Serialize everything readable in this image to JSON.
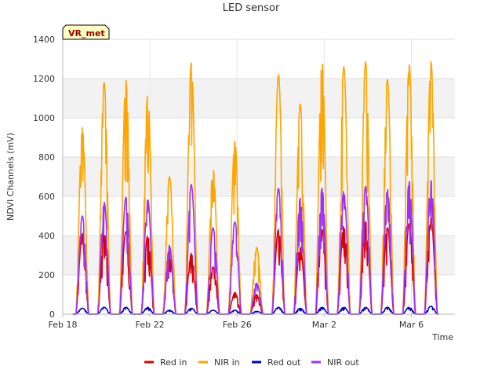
{
  "chart_data": {
    "type": "line",
    "title": "LED sensor",
    "xlabel": "Time",
    "ylabel": "NDVI Channels (mV)",
    "badge": "VR_met",
    "ylim": [
      0,
      1400
    ],
    "yticks": [
      0,
      200,
      400,
      600,
      800,
      1000,
      1200,
      1400
    ],
    "xlim_days": [
      0,
      18
    ],
    "xticks": [
      {
        "day": 0,
        "label": "Feb 18"
      },
      {
        "day": 4,
        "label": "Feb 22"
      },
      {
        "day": 8,
        "label": "Feb 26"
      },
      {
        "day": 12,
        "label": "Mar 2"
      },
      {
        "day": 16,
        "label": "Mar 6"
      }
    ],
    "legend_position": "bottom-center",
    "grid": true,
    "days": [
      "Feb 18",
      "Feb 19",
      "Feb 20",
      "Feb 21",
      "Feb 22",
      "Feb 23",
      "Feb 24",
      "Feb 25",
      "Feb 26",
      "Feb 27",
      "Feb 28",
      "Mar 1",
      "Mar 2",
      "Mar 3",
      "Mar 4",
      "Mar 5",
      "Mar 6",
      "Mar 7"
    ],
    "daily_noon_center_day": [
      0.9,
      1.9,
      2.9,
      3.9,
      4.9,
      5.9,
      6.9,
      7.9,
      8.9,
      9.9,
      10.9,
      11.9,
      12.9,
      13.9,
      14.9,
      15.9,
      16.9
    ],
    "series": [
      {
        "name": "Red in",
        "color": "#dd0000",
        "daily_peak": [
          410,
          415,
          420,
          400,
          340,
          310,
          240,
          110,
          100,
          430,
          340,
          430,
          450,
          470,
          440,
          460,
          490
        ]
      },
      {
        "name": "NIR in",
        "color": "#ffa500",
        "daily_peak": [
          950,
          1180,
          1190,
          1120,
          700,
          1280,
          740,
          880,
          340,
          1220,
          1070,
          1285,
          1260,
          1285,
          1195,
          1270,
          1285
        ]
      },
      {
        "name": "Red out",
        "color": "#0000cc",
        "daily_peak": [
          30,
          35,
          35,
          35,
          20,
          30,
          20,
          20,
          15,
          35,
          30,
          35,
          35,
          35,
          35,
          35,
          40
        ]
      },
      {
        "name": "NIR out",
        "color": "#9b30ff",
        "daily_peak": [
          500,
          570,
          595,
          585,
          350,
          660,
          440,
          470,
          160,
          640,
          590,
          640,
          630,
          650,
          640,
          675,
          680
        ]
      }
    ]
  }
}
